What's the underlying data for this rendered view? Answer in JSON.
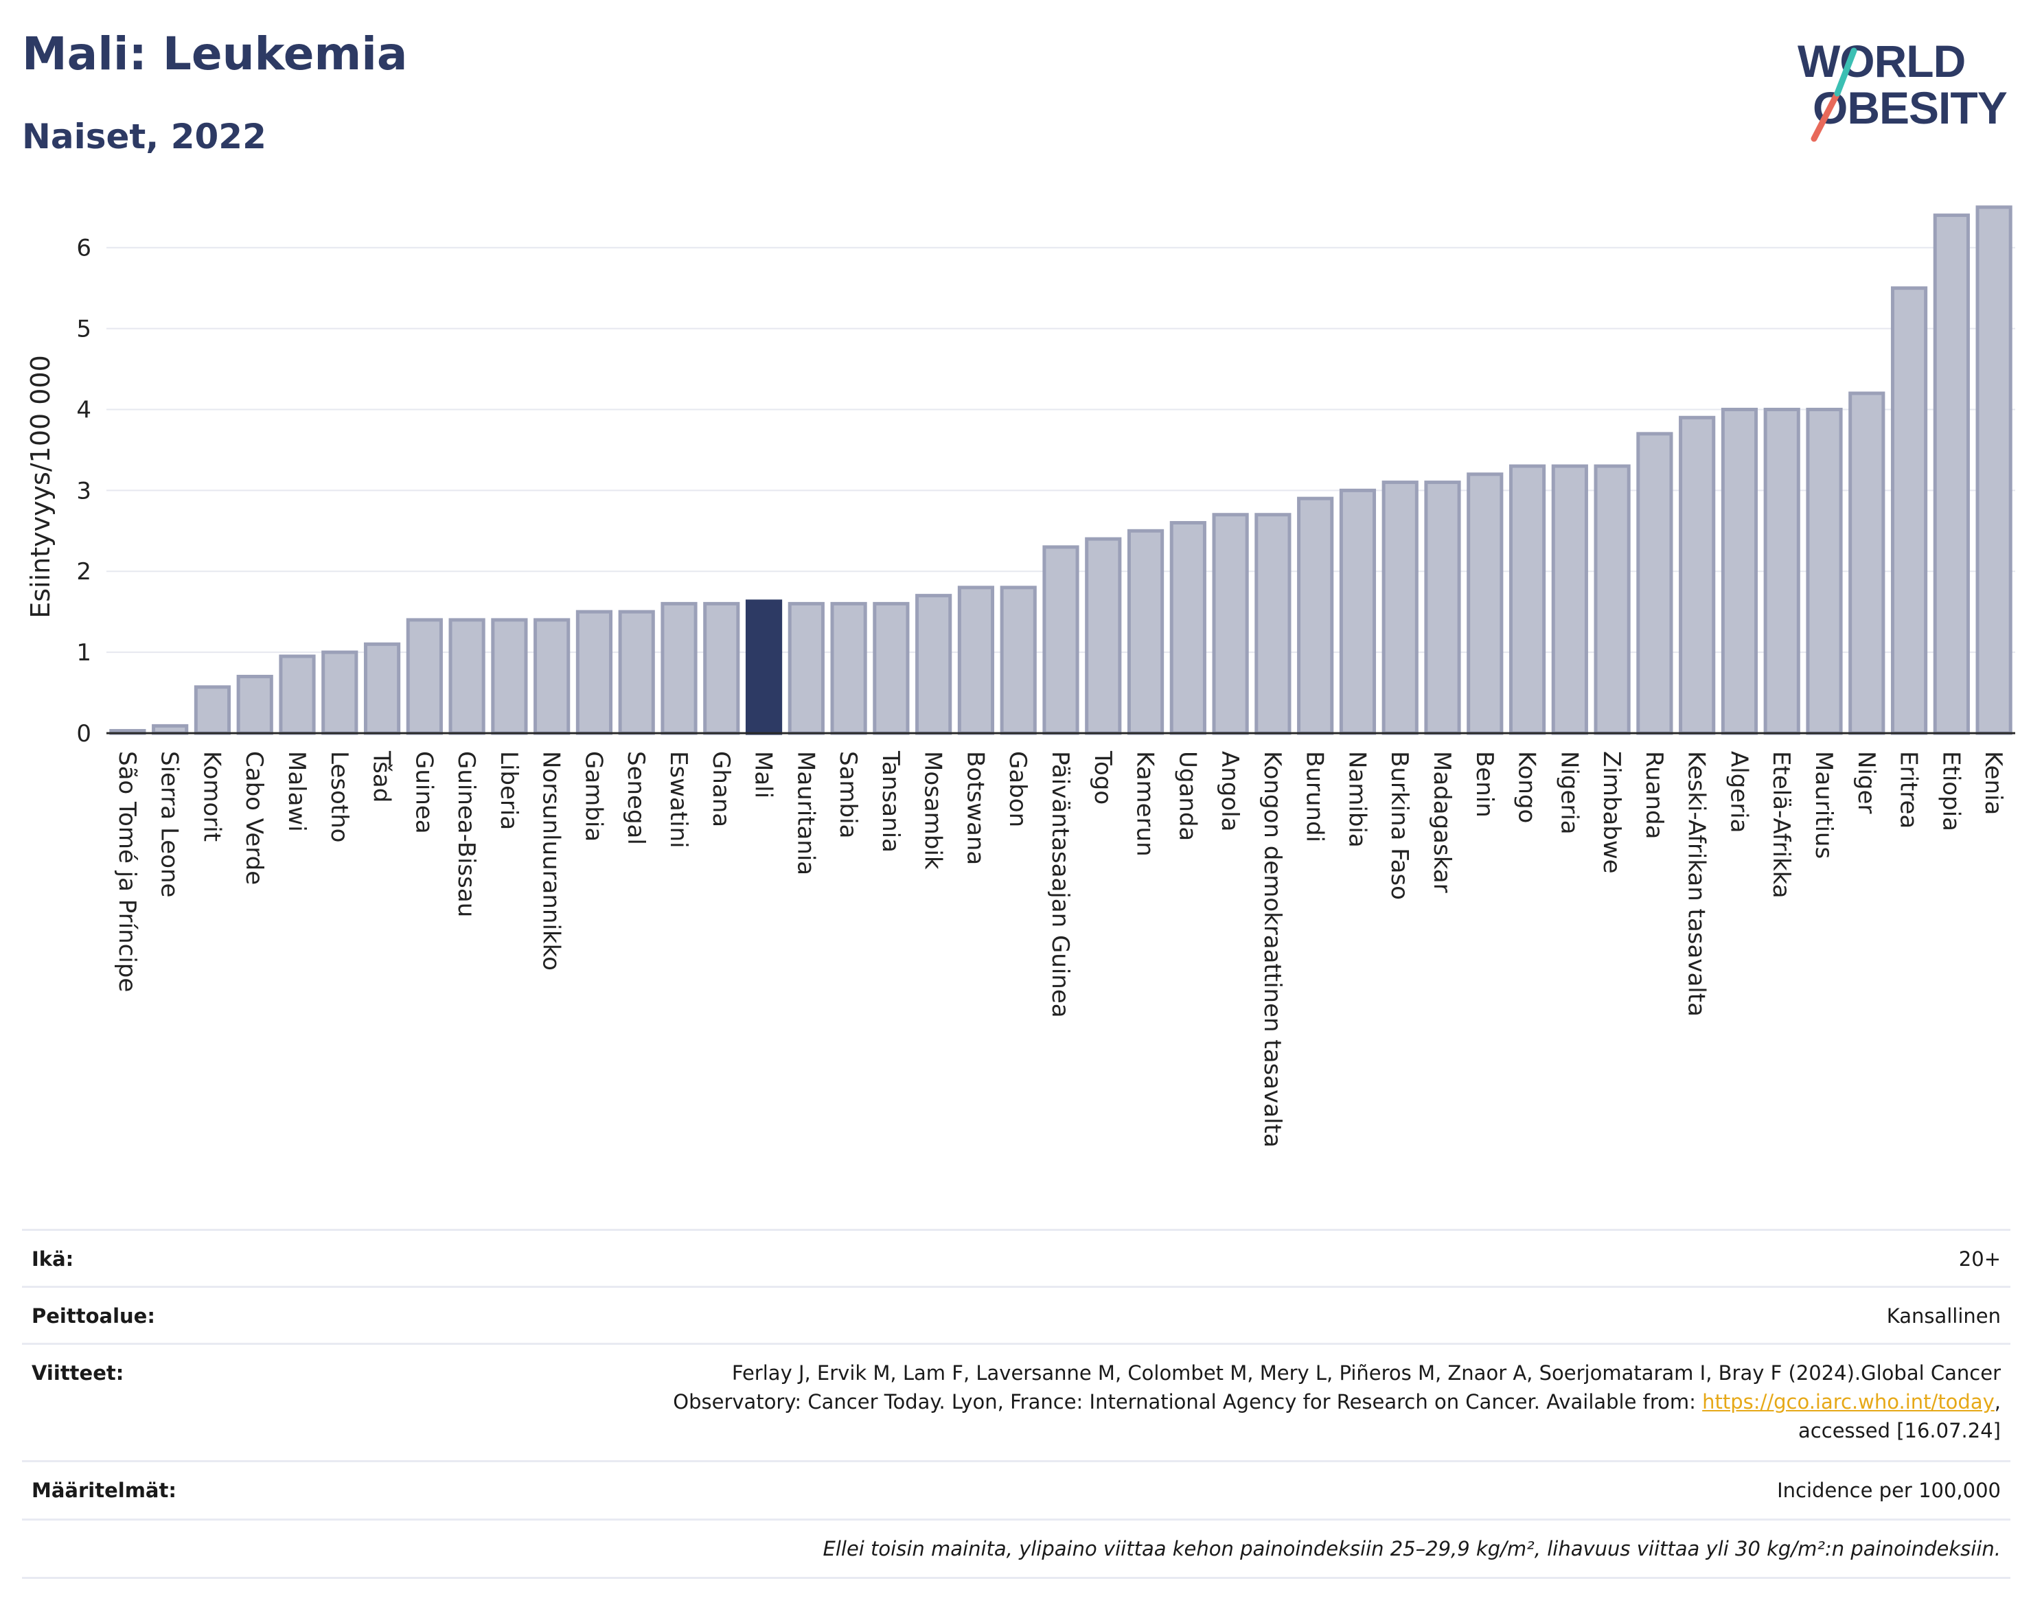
{
  "title": "Mali: Leukemia",
  "subtitle": "Naiset, 2022",
  "logo": {
    "line1": "WORLD",
    "line2": "OBESITY"
  },
  "colors": {
    "title": "#2d3a64",
    "bar": "#bcc0cf",
    "bar_stroke": "#9ba0b8",
    "highlight": "#2d3a64",
    "grid": "#e6e8ef",
    "accent_red": "#e8695a",
    "accent_teal": "#3bbfb3",
    "link": "#e6a817"
  },
  "chart_data": {
    "type": "bar",
    "ylabel": "Esiintyvyys/100 000",
    "xlabel": "",
    "ylim": [
      0,
      6.6
    ],
    "yticks": [
      0,
      1,
      2,
      3,
      4,
      5,
      6
    ],
    "grid": true,
    "highlight": "Mali",
    "categories": [
      "São Tomé ja Príncipe",
      "Sierra Leone",
      "Komorit",
      "Cabo Verde",
      "Malawi",
      "Lesotho",
      "Tšad",
      "Guinea",
      "Guinea-Bissau",
      "Liberia",
      "Norsunluurannikko",
      "Gambia",
      "Senegal",
      "Eswatini",
      "Ghana",
      "Mali",
      "Mauritania",
      "Sambia",
      "Tansania",
      "Mosambik",
      "Botswana",
      "Gabon",
      "Päiväntasaajan Guinea",
      "Togo",
      "Kamerun",
      "Uganda",
      "Angola",
      "Kongon demokraattinen tasavalta",
      "Burundi",
      "Namibia",
      "Burkina Faso",
      "Madagaskar",
      "Benin",
      "Kongo",
      "Nigeria",
      "Zimbabwe",
      "Ruanda",
      "Keski-Afrikan tasavalta",
      "Algeria",
      "Etelä-Afrikka",
      "Mauritius",
      "Niger",
      "Eritrea",
      "Etiopia",
      "Kenia"
    ],
    "values": [
      0.03,
      0.09,
      0.57,
      0.7,
      0.95,
      1.0,
      1.1,
      1.4,
      1.4,
      1.4,
      1.4,
      1.5,
      1.5,
      1.6,
      1.6,
      1.63,
      1.6,
      1.6,
      1.6,
      1.7,
      1.8,
      1.8,
      2.3,
      2.4,
      2.5,
      2.6,
      2.7,
      2.7,
      2.9,
      3.0,
      3.1,
      3.1,
      3.2,
      3.3,
      3.3,
      3.3,
      3.7,
      3.9,
      4.0,
      4.0,
      4.0,
      4.2,
      5.5,
      6.4,
      6.5
    ]
  },
  "info": {
    "age_label": "Ikä:",
    "age_value": "20+",
    "coverage_label": "Peittoalue:",
    "coverage_value": "Kansallinen",
    "refs_label": "Viitteet:",
    "refs_line1": "Ferlay J, Ervik M, Lam F, Laversanne M, Colombet M, Mery L, Piñeros M, Znaor A, Soerjomataram I, Bray F (2024).Global Cancer",
    "refs_line2": "Observatory: Cancer Today. Lyon, France: International Agency for Research on Cancer. Available from: ",
    "refs_link": "https://gco.iarc.who.int/today",
    "refs_line2_end": ",",
    "refs_line3": "accessed [16.07.24]",
    "defs_label": "Määritelmät:",
    "defs_value": "Incidence per 100,000",
    "note": "Ellei toisin mainita, ylipaino viittaa kehon painoindeksiin 25–29,9 kg/m², lihavuus viittaa yli 30 kg/m²:n painoindeksiin."
  }
}
